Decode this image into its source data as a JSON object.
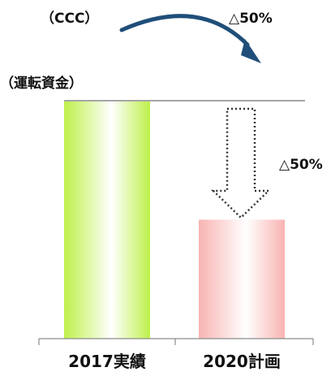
{
  "chart_data": {
    "type": "bar",
    "categories": [
      "2017実績",
      "2020計画"
    ],
    "values": [
      100,
      50
    ],
    "ylim": [
      0,
      100
    ],
    "grid": false,
    "annotations": {
      "ccc_label": "（CCC）",
      "ccc_change": "△50%",
      "wc_label": "（運転資金）",
      "wc_change": "△50%"
    }
  },
  "colors": {
    "bar_2017_edge": "#bef04a",
    "bar_2017_center": "#ffffff",
    "bar_2020_edge": "#f8b4b2",
    "bar_2020_center": "#ffffff",
    "reference_line": "#a6a6a6",
    "arrow": "#1f4e79",
    "dotted_arrow": "#333333",
    "axis": "#8c8c8c"
  },
  "icons": {
    "curved_arrow": "curved-arrow-icon",
    "dotted_down_arrow": "dotted-down-arrow-icon"
  }
}
